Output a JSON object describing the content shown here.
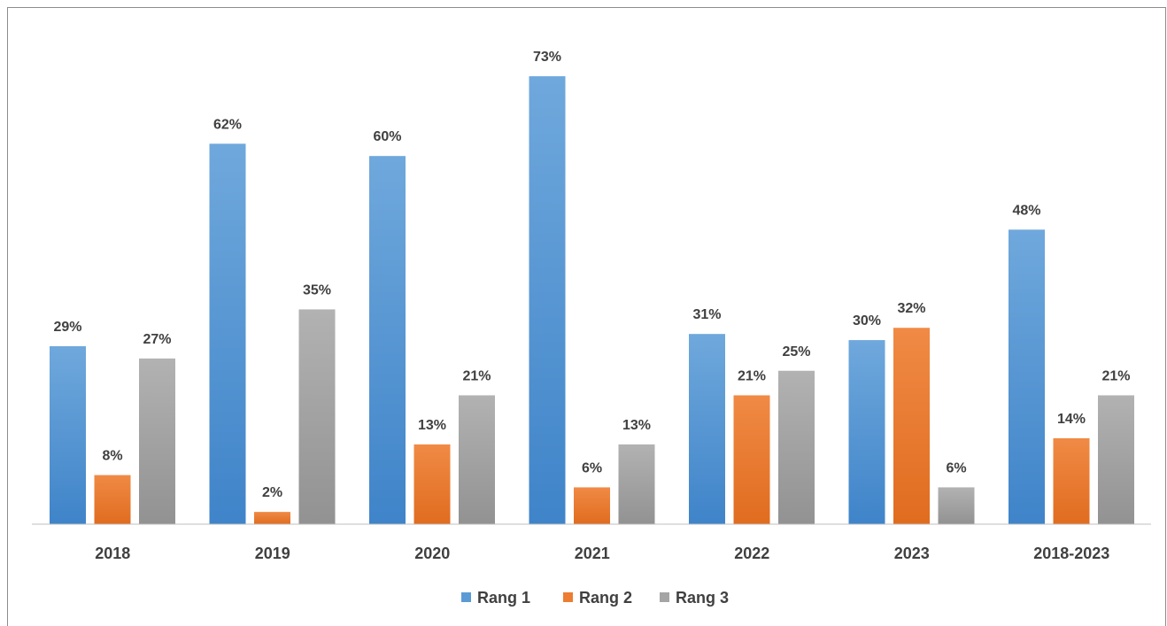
{
  "chart_data": {
    "type": "bar",
    "title": "",
    "xlabel": "",
    "ylabel": "",
    "ylim": [
      0,
      80
    ],
    "grid": false,
    "legend_position": "bottom",
    "categories": [
      "2018",
      "2019",
      "2020",
      "2021",
      "2022",
      "2023",
      "2018-2023"
    ],
    "series": [
      {
        "name": "Rang 1",
        "color": "#5b9bd5",
        "values": [
          29,
          62,
          60,
          73,
          31,
          30,
          48
        ],
        "labels": [
          "29%",
          "62%",
          "60%",
          "73%",
          "31%",
          "30%",
          "48%"
        ]
      },
      {
        "name": "Rang 2",
        "color": "#ed7d31",
        "values": [
          8,
          2,
          13,
          6,
          21,
          32,
          14
        ],
        "labels": [
          "8%",
          "2%",
          "13%",
          "6%",
          "21%",
          "32%",
          "14%"
        ]
      },
      {
        "name": "Rang 3",
        "color": "#a5a5a5",
        "values": [
          27,
          35,
          21,
          13,
          25,
          6,
          21
        ],
        "labels": [
          "27%",
          "35%",
          "21%",
          "13%",
          "25%",
          "6%",
          "21%"
        ]
      }
    ]
  }
}
